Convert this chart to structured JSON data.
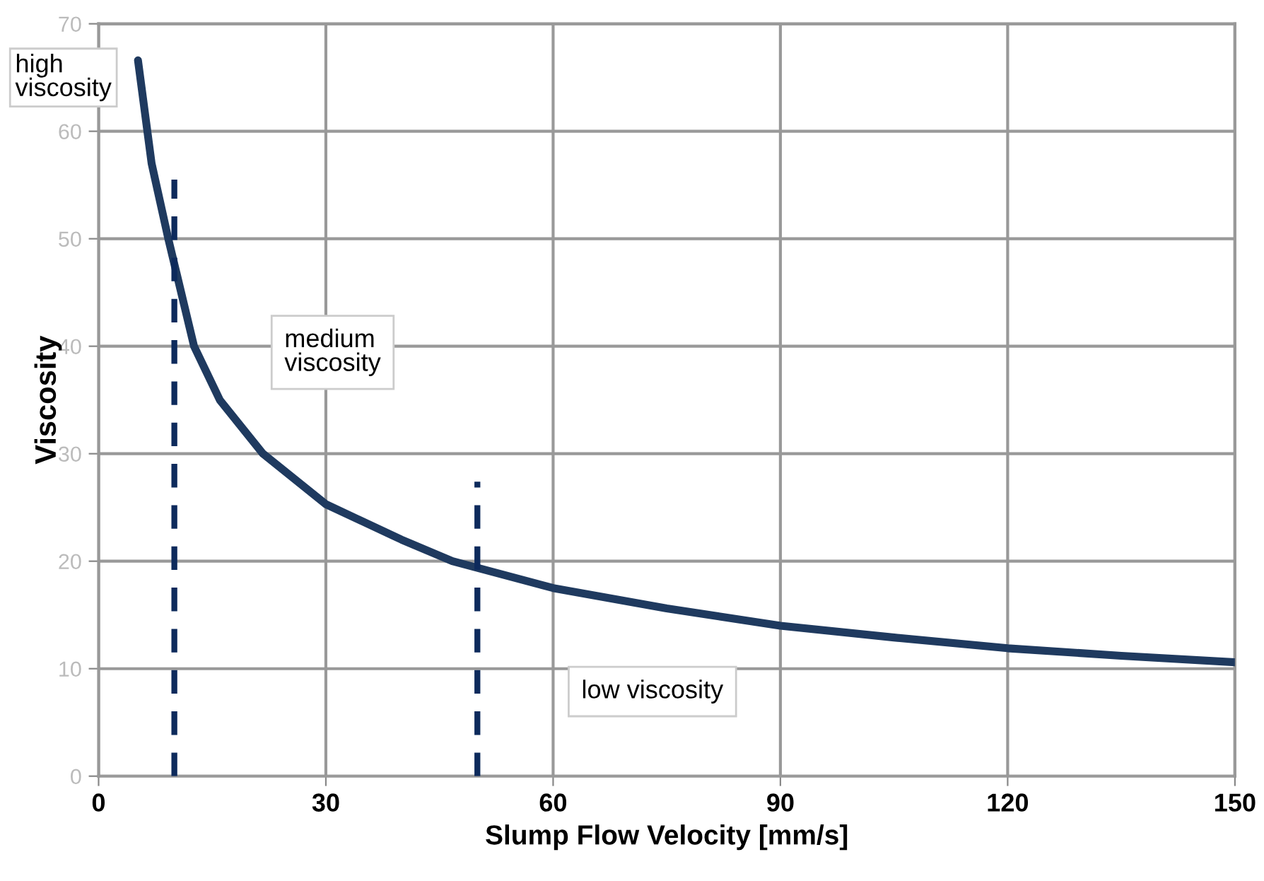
{
  "chart_data": {
    "type": "line",
    "xlabel": "Slump Flow Velocity [mm/s]",
    "ylabel": "Viscosity",
    "series": [
      {
        "color": "#1f3a5f",
        "line_style": "solid",
        "x": [
          5.2,
          7,
          9.2,
          12.6,
          16,
          21.7,
          30,
          40,
          46.7,
          60,
          75,
          90,
          105,
          120,
          135,
          150
        ],
        "values": [
          66.6,
          57,
          50,
          40,
          35,
          30,
          25.3,
          22,
          20,
          17.5,
          15.6,
          14,
          12.9,
          11.9,
          11.2,
          10.6
        ]
      },
      {
        "color": "#0d2a5c",
        "line_style": "dashed",
        "x": [
          10,
          10
        ],
        "values": [
          0,
          55.5
        ]
      },
      {
        "color": "#0d2a5c",
        "line_style": "dashed",
        "x": [
          50,
          50
        ],
        "values": [
          0,
          27.4
        ]
      }
    ],
    "annotations": [
      "high viscosity",
      "medium viscosity",
      "low viscosity"
    ],
    "xlim": [
      0,
      150
    ],
    "xticks": [
      0,
      30,
      60,
      90,
      120,
      150
    ],
    "ylim": [
      0,
      70
    ],
    "yticks": [
      0,
      10,
      20,
      30,
      40,
      50,
      60,
      70
    ],
    "grid": true,
    "marker": "none"
  }
}
